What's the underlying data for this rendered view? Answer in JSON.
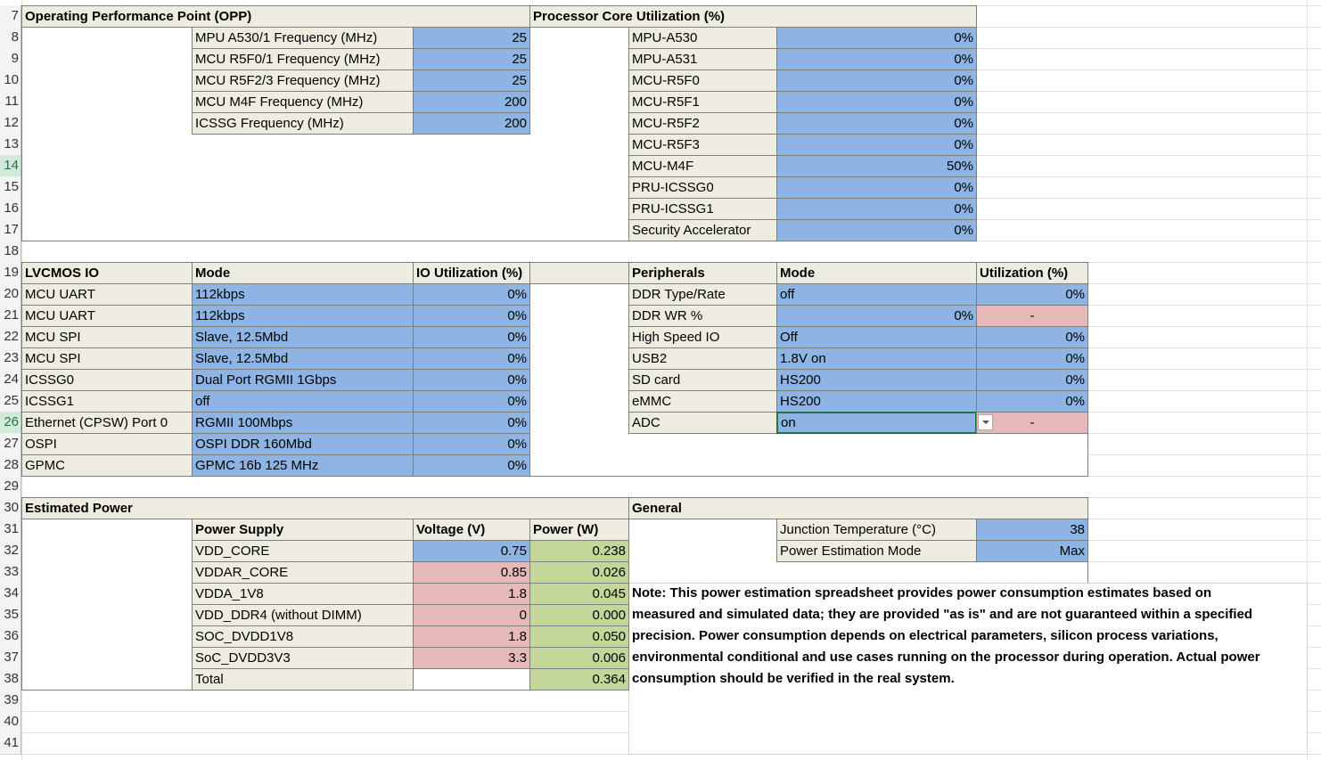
{
  "row_numbers": [
    7,
    8,
    9,
    10,
    11,
    12,
    13,
    14,
    15,
    16,
    17,
    18,
    19,
    20,
    21,
    22,
    23,
    24,
    25,
    26,
    27,
    28,
    29,
    30,
    31,
    32,
    33,
    34,
    35,
    36,
    37,
    38,
    39,
    40,
    41
  ],
  "opp": {
    "title": "Operating Performance Point (OPP)",
    "rows": [
      [
        "MPU A530/1 Frequency (MHz)",
        "25"
      ],
      [
        "MCU R5F0/1 Frequency (MHz)",
        "25"
      ],
      [
        "MCU R5F2/3 Frequency (MHz)",
        "25"
      ],
      [
        "MCU M4F Frequency (MHz)",
        "200"
      ],
      [
        "ICSSG Frequency (MHz)",
        "200"
      ]
    ]
  },
  "core_utilization": {
    "title": "Processor Core Utilization (%)",
    "rows": [
      [
        "MPU-A530",
        "0%"
      ],
      [
        "MPU-A531",
        "0%"
      ],
      [
        "MCU-R5F0",
        "0%"
      ],
      [
        "MCU-R5F1",
        "0%"
      ],
      [
        "MCU-R5F2",
        "0%"
      ],
      [
        "MCU-R5F3",
        "0%"
      ],
      [
        "MCU-M4F",
        "50%"
      ],
      [
        "PRU-ICSSG0",
        "0%"
      ],
      [
        "PRU-ICSSG1",
        "0%"
      ],
      [
        "Security Accelerator",
        "0%"
      ]
    ]
  },
  "lvcmos_io": {
    "headers": [
      "LVCMOS IO",
      "Mode",
      "IO Utilization (%)"
    ],
    "rows": [
      [
        "MCU UART",
        "112kbps",
        "0%"
      ],
      [
        "MCU UART",
        "112kbps",
        "0%"
      ],
      [
        "MCU SPI",
        "Slave, 12.5Mbd",
        "0%"
      ],
      [
        "MCU SPI",
        "Slave, 12.5Mbd",
        "0%"
      ],
      [
        "ICSSG0",
        "Dual Port RGMII 1Gbps",
        "0%"
      ],
      [
        "ICSSG1",
        "off",
        "0%"
      ],
      [
        "Ethernet (CPSW) Port 0",
        "RGMII 100Mbps",
        "0%"
      ],
      [
        "OSPI",
        "OSPI DDR 160Mbd",
        "0%"
      ],
      [
        "GPMC",
        "GPMC 16b 125 MHz",
        "0%"
      ]
    ]
  },
  "peripherals": {
    "headers": [
      "Peripherals",
      "Mode",
      "Utilization (%)"
    ],
    "rows": [
      [
        "DDR Type/Rate",
        "off",
        "0%"
      ],
      [
        "DDR WR %",
        "0%",
        "-"
      ],
      [
        "High Speed IO",
        "Off",
        "0%"
      ],
      [
        "USB2",
        "1.8V on",
        "0%"
      ],
      [
        "SD card",
        "HS200",
        "0%"
      ],
      [
        "eMMC",
        "HS200",
        "0%"
      ],
      [
        "ADC",
        "on",
        "-"
      ]
    ]
  },
  "estimated_power": {
    "title": "Estimated Power",
    "headers": [
      "Power Supply",
      "Voltage (V)",
      "Power (W)"
    ],
    "rows": [
      [
        "VDD_CORE",
        "0.75",
        "0.238"
      ],
      [
        "VDDAR_CORE",
        "0.85",
        "0.026"
      ],
      [
        "VDDA_1V8",
        "1.8",
        "0.045"
      ],
      [
        "VDD_DDR4 (without DIMM)",
        "0",
        "0.000"
      ],
      [
        "SOC_DVDD1V8",
        "1.8",
        "0.050"
      ],
      [
        "SoC_DVDD3V3",
        "3.3",
        "0.006"
      ]
    ],
    "total": {
      "label": "Total",
      "power": "0.364"
    }
  },
  "general": {
    "title": "General",
    "rows": [
      [
        "Junction Temperature (°C)",
        "38"
      ],
      [
        "Power Estimation Mode",
        "Max"
      ]
    ]
  },
  "note_lines": [
    "Note: This power estimation spreadsheet provides power consumption estimates based on",
    "measured and simulated data; they are provided \"as is\" and are not guaranteed within a specified",
    "precision. Power consumption depends on electrical parameters, silicon process variations,",
    "environmental conditional and use cases running on the processor during operation. Actual power",
    "consumption should be verified in the real system."
  ]
}
